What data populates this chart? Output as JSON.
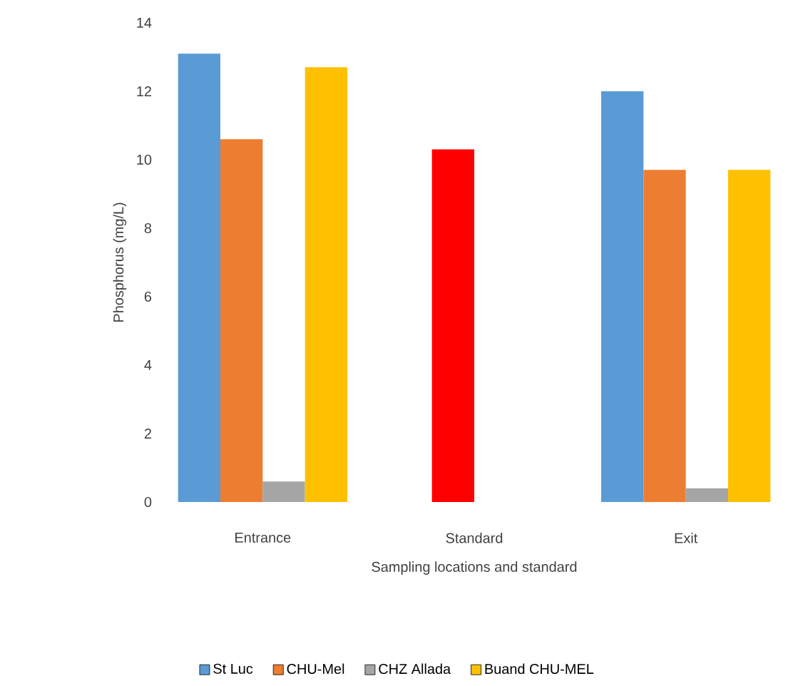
{
  "chart_data": {
    "type": "bar",
    "xlabel": "Sampling locations and standard",
    "ylabel": "Phosphorus (mg/L)",
    "categories": [
      "Entrance",
      "Standard",
      "Exit"
    ],
    "series": [
      {
        "name": "St Luc",
        "color": "#5b9bd5",
        "values": [
          13.1,
          null,
          12.0
        ]
      },
      {
        "name": "CHU-Mel",
        "color": "#ed7d31",
        "colors": [
          "#ed7d31",
          "#ff0000",
          "#ed7d31"
        ],
        "values": [
          10.6,
          10.3,
          9.7
        ]
      },
      {
        "name": "CHZ Allada",
        "color": "#a5a5a5",
        "values": [
          0.6,
          null,
          0.4
        ]
      },
      {
        "name": "Buand CHU-MEL",
        "color": "#ffc000",
        "values": [
          12.7,
          null,
          9.7
        ]
      }
    ],
    "ylim": [
      0,
      14
    ],
    "yticks": [
      0,
      2,
      4,
      6,
      8,
      10,
      12,
      14
    ],
    "legend": "bottom"
  }
}
